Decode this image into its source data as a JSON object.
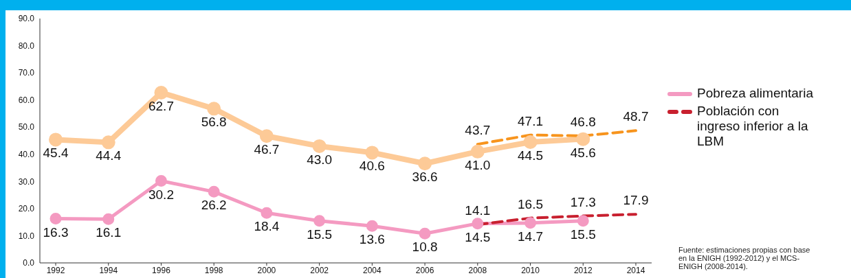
{
  "chart_data": {
    "type": "line",
    "categories": [
      "1992",
      "1994",
      "1996",
      "1998",
      "2000",
      "2002",
      "2004",
      "2006",
      "2008",
      "2010",
      "2012",
      "2014"
    ],
    "ylim": [
      0,
      90
    ],
    "yticks": [
      {
        "value": 0,
        "label": "0.0"
      },
      {
        "value": 10,
        "label": "10.0"
      },
      {
        "value": 20,
        "label": "20.0"
      },
      {
        "value": 30,
        "label": "30.0"
      },
      {
        "value": 40,
        "label": "40.0"
      },
      {
        "value": 50,
        "label": "50.0"
      },
      {
        "value": 60,
        "label": "60.0"
      },
      {
        "value": 70,
        "label": "70.0"
      },
      {
        "value": 80,
        "label": "80.0"
      },
      {
        "value": 90,
        "label": "90.0"
      }
    ],
    "grid": false,
    "legend": "right",
    "series": [
      {
        "color": "#fdca97",
        "marker": "circle",
        "line_style": "solid",
        "values": [
          45.4,
          44.4,
          62.7,
          56.8,
          46.7,
          43.0,
          40.6,
          36.6,
          41.0,
          44.5,
          45.6,
          null
        ],
        "value_labels": [
          "45.4",
          "44.4",
          "62.7",
          "56.8",
          "46.7",
          "43.0",
          "40.6",
          "36.6",
          "41.0",
          "44.5",
          "45.6",
          null
        ]
      },
      {
        "color": "#f7941d",
        "marker": "none",
        "line_style": "dashed",
        "values": [
          null,
          null,
          null,
          null,
          null,
          null,
          null,
          null,
          43.7,
          47.1,
          46.8,
          48.7
        ],
        "value_labels": [
          null,
          null,
          null,
          null,
          null,
          null,
          null,
          null,
          "43.7",
          "47.1",
          "46.8",
          "48.7"
        ]
      },
      {
        "name": "Pobreza alimentaria",
        "color": "#f49ac1",
        "marker": "circle",
        "line_style": "solid",
        "values": [
          16.3,
          16.1,
          30.2,
          26.2,
          18.4,
          15.5,
          13.6,
          10.8,
          14.5,
          14.7,
          15.5,
          null
        ],
        "value_labels": [
          "16.3",
          "16.1",
          "30.2",
          "26.2",
          "18.4",
          "15.5",
          "13.6",
          "10.8",
          "14.5",
          "14.7",
          "15.5",
          null
        ]
      },
      {
        "name": "Población con ingreso inferior a la LBM",
        "color": "#c8202f",
        "marker": "none",
        "line_style": "dashed",
        "values": [
          null,
          null,
          null,
          null,
          null,
          null,
          null,
          null,
          14.1,
          16.5,
          17.3,
          17.9
        ],
        "value_labels": [
          null,
          null,
          null,
          null,
          null,
          null,
          null,
          null,
          "14.1",
          "16.5",
          "17.3",
          "17.9"
        ]
      }
    ],
    "annotations": [
      "Fuente: estimaciones propias con base en la ENIGH (1992-2012)  y el MCS-ENIGH (2008-2014)."
    ]
  }
}
